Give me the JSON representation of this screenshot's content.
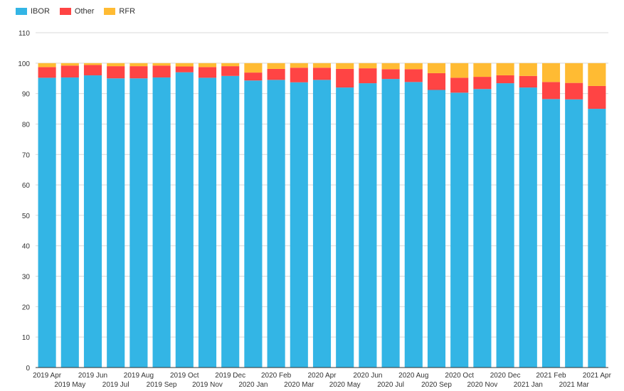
{
  "chart_data": {
    "type": "bar",
    "stacked": true,
    "title": "",
    "xlabel": "",
    "ylabel": "",
    "ylim": [
      0,
      110
    ],
    "yticks": [
      0,
      10,
      20,
      30,
      40,
      50,
      60,
      70,
      80,
      90,
      100,
      110
    ],
    "grid": true,
    "legend_position": "top-left",
    "categories": [
      "2019 Apr",
      "2019 May",
      "2019 Jun",
      "2019 Jul",
      "2019 Aug",
      "2019 Sep",
      "2019 Oct",
      "2019 Nov",
      "2019 Dec",
      "2020 Jan",
      "2020 Feb",
      "2020 Mar",
      "2020 Apr",
      "2020 May",
      "2020 Jun",
      "2020 Jul",
      "2020 Aug",
      "2020 Sep",
      "2020 Oct",
      "2020 Nov",
      "2020 Dec",
      "2021 Jan",
      "2021 Feb",
      "2021 Mar",
      "2021 Apr"
    ],
    "series": [
      {
        "name": "IBOR",
        "color": "#33b5e5",
        "values": [
          95.2,
          95.3,
          96.0,
          95.0,
          95.0,
          95.3,
          97.0,
          95.2,
          95.8,
          94.3,
          94.5,
          93.7,
          94.5,
          92.0,
          93.4,
          94.8,
          93.8,
          91.2,
          90.3,
          91.5,
          93.4,
          92.0,
          88.2,
          88.1,
          85.0
        ]
      },
      {
        "name": "Other",
        "color": "#ff4444",
        "values": [
          3.5,
          3.9,
          3.4,
          4.0,
          4.0,
          3.9,
          1.9,
          3.5,
          3.2,
          2.6,
          3.6,
          4.8,
          4.0,
          6.1,
          4.9,
          3.2,
          4.2,
          5.5,
          4.9,
          4.0,
          2.6,
          3.8,
          5.6,
          5.4,
          7.5
        ]
      },
      {
        "name": "RFR",
        "color": "#ffbb33",
        "values": [
          1.3,
          0.8,
          0.6,
          1.0,
          1.0,
          0.8,
          1.1,
          1.3,
          1.0,
          3.1,
          1.9,
          1.5,
          1.5,
          1.9,
          1.7,
          2.0,
          2.0,
          3.3,
          4.8,
          4.5,
          4.0,
          4.2,
          6.2,
          6.5,
          7.5
        ]
      }
    ]
  }
}
